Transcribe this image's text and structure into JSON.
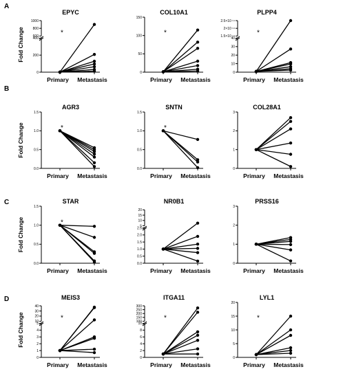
{
  "panel_labels": [
    "A",
    "B",
    "C",
    "D"
  ],
  "chart_data": [
    {
      "type": "line",
      "row": 0,
      "col": 0,
      "title": "EPYC",
      "ylabel": "Fold Change",
      "categories": [
        "Primary",
        "Metastasis"
      ],
      "star": "*",
      "y_breaks": [
        {
          "lim": [
            0,
            500
          ],
          "ticks": [
            "0",
            "200",
            "400"
          ]
        },
        {
          "lim": [
            600,
            1000
          ],
          "ticks": [
            "600",
            "800",
            "1000"
          ]
        }
      ],
      "series": [
        {
          "values": [
            1,
            900
          ]
        },
        {
          "values": [
            1,
            260
          ]
        },
        {
          "values": [
            1,
            160
          ]
        },
        {
          "values": [
            1,
            120
          ]
        },
        {
          "values": [
            1,
            80
          ]
        },
        {
          "values": [
            1,
            40
          ]
        },
        {
          "values": [
            1,
            15
          ]
        }
      ]
    },
    {
      "type": "line",
      "row": 0,
      "col": 1,
      "title": "COL10A1",
      "ylabel": "",
      "categories": [
        "Primary",
        "Metastasis"
      ],
      "star": "*",
      "y_breaks": [
        {
          "lim": [
            0,
            150
          ],
          "ticks": [
            "0",
            "50",
            "100",
            "150"
          ]
        }
      ],
      "series": [
        {
          "values": [
            1,
            115
          ]
        },
        {
          "values": [
            1,
            82
          ]
        },
        {
          "values": [
            1,
            65
          ]
        },
        {
          "values": [
            1,
            30
          ]
        },
        {
          "values": [
            1,
            18
          ]
        },
        {
          "values": [
            1,
            8
          ]
        },
        {
          "values": [
            1,
            3
          ]
        }
      ]
    },
    {
      "type": "line",
      "row": 0,
      "col": 2,
      "title": "PLPP4",
      "ylabel": "",
      "categories": [
        "Primary",
        "Metastasis"
      ],
      "star": "*",
      "y_breaks": [
        {
          "lim": [
            0,
            50
          ],
          "ticks": [
            "0",
            "10",
            "20",
            "30",
            "40"
          ]
        },
        {
          "lim": [
            150000000000000.0,
            250000000000000.0
          ],
          "ticks": [
            "1.5×10 ¹⁴",
            "2×10 ¹⁴",
            "2.5×10 ¹⁴"
          ]
        }
      ],
      "series": [
        {
          "values": [
            1,
            250000000000000.0
          ]
        },
        {
          "values": [
            1,
            34
          ]
        },
        {
          "values": [
            1,
            14
          ]
        },
        {
          "values": [
            1,
            12
          ]
        },
        {
          "values": [
            1,
            8
          ]
        },
        {
          "values": [
            1,
            5
          ]
        },
        {
          "values": [
            1,
            3
          ]
        }
      ]
    },
    {
      "type": "line",
      "row": 1,
      "col": 0,
      "title": "AGR3",
      "ylabel": "Fold Change",
      "categories": [
        "Primary",
        "Metastasis"
      ],
      "star": "*",
      "y_breaks": [
        {
          "lim": [
            0,
            1.5
          ],
          "ticks": [
            "0.0",
            "0.5",
            "1.0",
            "1.5"
          ]
        }
      ],
      "series": [
        {
          "values": [
            1,
            0.55
          ]
        },
        {
          "values": [
            1,
            0.5
          ]
        },
        {
          "values": [
            1,
            0.45
          ]
        },
        {
          "values": [
            1,
            0.38
          ]
        },
        {
          "values": [
            1,
            0.3
          ]
        },
        {
          "values": [
            1,
            0.15
          ]
        },
        {
          "values": [
            1,
            0.05
          ]
        }
      ]
    },
    {
      "type": "line",
      "row": 1,
      "col": 1,
      "title": "SNTN",
      "ylabel": "",
      "categories": [
        "Primary",
        "Metastasis"
      ],
      "star": "*",
      "y_breaks": [
        {
          "lim": [
            0,
            1.5
          ],
          "ticks": [
            "0.0",
            "0.5",
            "1.0",
            "1.5"
          ]
        }
      ],
      "series": [
        {
          "values": [
            1,
            0.77
          ]
        },
        {
          "values": [
            1,
            0.23
          ]
        },
        {
          "values": [
            1,
            0.17
          ]
        },
        {
          "values": [
            1,
            0.02
          ]
        }
      ]
    },
    {
      "type": "line",
      "row": 1,
      "col": 2,
      "title": "COL28A1",
      "ylabel": "",
      "categories": [
        "Primary",
        "Metastasis"
      ],
      "star": "",
      "y_breaks": [
        {
          "lim": [
            0,
            3
          ],
          "ticks": [
            "0",
            "1",
            "2",
            "3"
          ]
        }
      ],
      "series": [
        {
          "values": [
            1,
            2.7
          ]
        },
        {
          "values": [
            1,
            2.5
          ]
        },
        {
          "values": [
            1,
            2.1
          ]
        },
        {
          "values": [
            1,
            1.35
          ]
        },
        {
          "values": [
            1,
            0.75
          ]
        },
        {
          "values": [
            1,
            0.1
          ]
        }
      ]
    },
    {
      "type": "line",
      "row": 2,
      "col": 0,
      "title": "STAR",
      "ylabel": "Fold Change",
      "categories": [
        "Primary",
        "Metastasis"
      ],
      "star": "*",
      "y_breaks": [
        {
          "lim": [
            0,
            1.5
          ],
          "ticks": [
            "0.0",
            "0.5",
            "1.0",
            "1.5"
          ]
        }
      ],
      "series": [
        {
          "values": [
            1,
            0.97
          ]
        },
        {
          "values": [
            1,
            0.68
          ]
        },
        {
          "values": [
            1,
            0.3
          ]
        },
        {
          "values": [
            1,
            0.26
          ]
        },
        {
          "values": [
            1,
            0.06
          ]
        },
        {
          "values": [
            1,
            0.03
          ]
        }
      ]
    },
    {
      "type": "line",
      "row": 2,
      "col": 1,
      "title": "NR0B1",
      "ylabel": "",
      "categories": [
        "Primary",
        "Metastasis"
      ],
      "star": "",
      "y_breaks": [
        {
          "lim": [
            0,
            2.5
          ],
          "ticks": [
            "0.0",
            "0.5",
            "1.0",
            "1.5",
            "2.0",
            "2.5"
          ]
        },
        {
          "lim": [
            5,
            20
          ],
          "ticks": [
            "5",
            "10",
            "15",
            "20"
          ]
        }
      ],
      "series": [
        {
          "values": [
            1,
            7.5
          ]
        },
        {
          "values": [
            1,
            1.9
          ]
        },
        {
          "values": [
            1,
            1.35
          ]
        },
        {
          "values": [
            1,
            1.05
          ]
        },
        {
          "values": [
            1,
            0.75
          ]
        },
        {
          "values": [
            1,
            0.15
          ]
        }
      ]
    },
    {
      "type": "line",
      "row": 2,
      "col": 2,
      "title": "PRSS16",
      "ylabel": "",
      "categories": [
        "Primary",
        "Metastasis"
      ],
      "star": "",
      "y_breaks": [
        {
          "lim": [
            0,
            3
          ],
          "ticks": [
            "0",
            "1",
            "2",
            "3"
          ]
        }
      ],
      "series": [
        {
          "values": [
            1,
            1.35
          ]
        },
        {
          "values": [
            1,
            1.25
          ]
        },
        {
          "values": [
            1,
            1.15
          ]
        },
        {
          "values": [
            1,
            0.98
          ]
        },
        {
          "values": [
            1,
            0.7
          ]
        },
        {
          "values": [
            1,
            0.12
          ]
        }
      ]
    },
    {
      "type": "line",
      "row": 3,
      "col": 0,
      "title": "MEIS3",
      "ylabel": "Fold Change",
      "categories": [
        "Primary",
        "Metastasis"
      ],
      "star": "*",
      "y_breaks": [
        {
          "lim": [
            0,
            5
          ],
          "ticks": [
            "0",
            "1",
            "2",
            "3",
            "4",
            "5"
          ]
        },
        {
          "lim": [
            5,
            40
          ],
          "ticks": [
            "10",
            "20",
            "30",
            "40"
          ]
        }
      ],
      "series": [
        {
          "values": [
            1,
            37
          ]
        },
        {
          "values": [
            1,
            36
          ]
        },
        {
          "values": [
            1,
            8
          ]
        },
        {
          "values": [
            1,
            3
          ]
        },
        {
          "values": [
            1,
            2.8
          ]
        },
        {
          "values": [
            1,
            1.2
          ]
        },
        {
          "values": [
            1,
            0.7
          ]
        }
      ]
    },
    {
      "type": "line",
      "row": 3,
      "col": 1,
      "title": "ITGA11",
      "ylabel": "",
      "categories": [
        "Primary",
        "Metastasis"
      ],
      "star": "*",
      "y_breaks": [
        {
          "lim": [
            0,
            10
          ],
          "ticks": [
            "0",
            "2",
            "4",
            "6",
            "8",
            "10"
          ]
        },
        {
          "lim": [
            10,
            300
          ],
          "ticks": [
            "100",
            "150",
            "200",
            "250",
            "300"
          ]
        }
      ],
      "series": [
        {
          "values": [
            1,
            260
          ]
        },
        {
          "values": [
            1,
            180
          ]
        },
        {
          "values": [
            1,
            7.5
          ]
        },
        {
          "values": [
            1,
            6.5
          ]
        },
        {
          "values": [
            1,
            5
          ]
        },
        {
          "values": [
            1,
            2.5
          ]
        },
        {
          "values": [
            1,
            1
          ]
        }
      ]
    },
    {
      "type": "line",
      "row": 3,
      "col": 2,
      "title": "LYL1",
      "ylabel": "",
      "categories": [
        "Primary",
        "Metastasis"
      ],
      "star": "*",
      "y_breaks": [
        {
          "lim": [
            0,
            20
          ],
          "ticks": [
            "0",
            "5",
            "10",
            "15",
            "20"
          ]
        }
      ],
      "series": [
        {
          "values": [
            1,
            15
          ]
        },
        {
          "values": [
            1,
            10
          ]
        },
        {
          "values": [
            1,
            8
          ]
        },
        {
          "values": [
            1,
            3.5
          ]
        },
        {
          "values": [
            1,
            2.5
          ]
        },
        {
          "values": [
            1,
            1.5
          ]
        }
      ]
    }
  ]
}
